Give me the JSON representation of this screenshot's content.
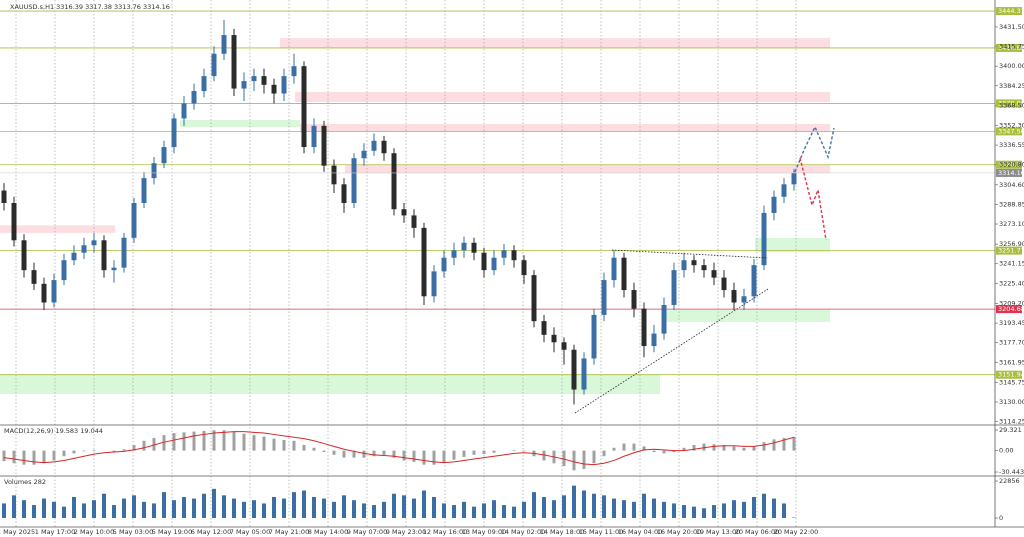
{
  "chart_data": [
    {
      "type": "candlestick",
      "title": "XAUUSD.s,H1  3316.39 3317.38 3313.76 3314.16",
      "ylim": [
        3111.5,
        3453.2
      ],
      "yticks": [
        {
          "value": 3431.5,
          "label": "3431.50"
        },
        3415.75,
        {
          "value": 3400,
          "label": "3400.00"
        },
        3384.25,
        {
          "value": 3368.5,
          "label": "3368.50"
        },
        {
          "value": 3352.3,
          "label": "3352.30"
        },
        3336.55,
        {
          "value": 3320.8,
          "label": "3320.80"
        },
        {
          "value": 3304.6,
          "label": "3304.60"
        },
        3288.85,
        {
          "value": 3273.1,
          "label": "3273.10"
        },
        {
          "value": 3256.9,
          "label": "3256.90"
        },
        3241.15,
        {
          "value": 3225.4,
          "label": "3225.40"
        },
        {
          "value": 3209.2,
          "label": "3209.20"
        },
        3193.45,
        {
          "value": 3177.7,
          "label": "3177.70"
        },
        3161.95,
        3145.75,
        {
          "value": 3130,
          "label": "3130.00"
        },
        3114.25
      ],
      "time_labels": [
        "1 May 2025",
        "1 May 17:00",
        "2 May 10:00",
        "5 May 03:00",
        "5 May 19:00",
        "6 May 12:00",
        "7 May 05:00",
        "7 May 21:00",
        "8 May 14:00",
        "9 May 07:00",
        "9 May 23:00",
        "12 May 16:00",
        "13 May 09:00",
        "14 May 02:00",
        "14 May 18:00",
        "15 May 11:00",
        "16 May 04:00",
        "16 May 20:00",
        "19 May 13:00",
        "20 May 06:00",
        "20 May 22:00"
      ],
      "up_color": "#3b6ea5",
      "down_color": "#2b2b2b",
      "open": [
        3300,
        3290,
        3260,
        3236,
        3225,
        3210,
        3228,
        3244,
        3250,
        3256,
        3260,
        3236,
        3238,
        3262,
        3290,
        3310,
        3322,
        3335,
        3358,
        3370,
        3380,
        3392,
        3410,
        3425,
        3382,
        3388,
        3392,
        3385,
        3378,
        3392,
        3400,
        3335,
        3352,
        3320,
        3305,
        3290,
        3326,
        3332,
        3340,
        3330,
        3285,
        3280,
        3270,
        3215,
        3235,
        3246,
        3252,
        3258,
        3250,
        3236,
        3246,
        3252,
        3244,
        3232,
        3195,
        3184,
        3178,
        3172,
        3140,
        3165,
        3200,
        3228,
        3246,
        3220,
        3205,
        3175,
        3185,
        3208,
        3236,
        3244,
        3240,
        3236,
        3230,
        3220,
        3210,
        3215,
        3240,
        3282,
        3295,
        3305
      ],
      "high": [
        3306,
        3295,
        3265,
        3242,
        3230,
        3233,
        3249,
        3256,
        3262,
        3266,
        3264,
        3244,
        3266,
        3294,
        3315,
        3327,
        3340,
        3362,
        3376,
        3386,
        3398,
        3416,
        3437,
        3430,
        3395,
        3398,
        3398,
        3390,
        3398,
        3410,
        3404,
        3358,
        3356,
        3325,
        3310,
        3330,
        3338,
        3346,
        3344,
        3334,
        3290,
        3285,
        3274,
        3240,
        3252,
        3258,
        3263,
        3262,
        3254,
        3252,
        3257,
        3256,
        3248,
        3236,
        3200,
        3190,
        3182,
        3176,
        3170,
        3205,
        3234,
        3252,
        3250,
        3226,
        3210,
        3192,
        3214,
        3242,
        3250,
        3248,
        3245,
        3242,
        3236,
        3226,
        3221,
        3245,
        3288,
        3300,
        3310,
        3317.38
      ],
      "low": [
        3284,
        3255,
        3230,
        3220,
        3204,
        3206,
        3224,
        3240,
        3245,
        3250,
        3230,
        3226,
        3234,
        3258,
        3286,
        3305,
        3318,
        3330,
        3352,
        3365,
        3375,
        3388,
        3405,
        3376,
        3372,
        3380,
        3378,
        3370,
        3372,
        3386,
        3330,
        3330,
        3315,
        3298,
        3282,
        3286,
        3320,
        3328,
        3324,
        3280,
        3274,
        3262,
        3208,
        3210,
        3230,
        3240,
        3246,
        3244,
        3230,
        3232,
        3240,
        3238,
        3225,
        3190,
        3178,
        3170,
        3160,
        3128,
        3136,
        3160,
        3195,
        3222,
        3214,
        3198,
        3166,
        3170,
        3180,
        3204,
        3230,
        3234,
        3230,
        3224,
        3214,
        3204,
        3204,
        3210,
        3236,
        3276,
        3290,
        3300
      ],
      "close": [
        3290,
        3260,
        3236,
        3225,
        3210,
        3228,
        3244,
        3250,
        3256,
        3260,
        3236,
        3238,
        3262,
        3290,
        3310,
        3322,
        3335,
        3358,
        3370,
        3380,
        3392,
        3410,
        3425,
        3382,
        3388,
        3392,
        3385,
        3378,
        3392,
        3400,
        3335,
        3352,
        3320,
        3305,
        3290,
        3326,
        3332,
        3340,
        3330,
        3285,
        3280,
        3270,
        3215,
        3235,
        3246,
        3252,
        3258,
        3250,
        3236,
        3246,
        3252,
        3244,
        3232,
        3195,
        3184,
        3178,
        3172,
        3140,
        3165,
        3200,
        3228,
        3246,
        3220,
        3205,
        3175,
        3185,
        3208,
        3236,
        3244,
        3240,
        3236,
        3230,
        3220,
        3210,
        3215,
        3240,
        3282,
        3295,
        3305,
        3314.16
      ],
      "levels": [
        {
          "value": 3444.31,
          "color": "#aabd3c"
        },
        {
          "value": 3414.65,
          "color": "#aabd3c"
        },
        {
          "value": 3370.05,
          "color": "#aabd3c"
        },
        {
          "value": 3347.56,
          "color": "#aabd3c"
        },
        {
          "value": 3320.77,
          "color": "#aabd3c"
        },
        {
          "value": 3251.71,
          "color": "#aabd3c"
        },
        {
          "value": 3204.68,
          "color": "#e0334f"
        },
        {
          "value": 3151.94,
          "color": "#aabd3c"
        }
      ],
      "current": {
        "value": 3314.16,
        "color": "#8c8c8c"
      },
      "zones": [
        {
          "low": 3414.4,
          "high": 3422.5,
          "color": "#fbdde2"
        },
        {
          "low": 3371.2,
          "high": 3379.2,
          "color": "#fbdde2"
        },
        {
          "low": 3347,
          "high": 3353.5,
          "color": "#fbdde2"
        },
        {
          "low": 3314,
          "high": 3320.5,
          "color": "#fbdde2"
        },
        {
          "low": 3266,
          "high": 3272,
          "color": "#fbdde2"
        },
        {
          "low": 3351,
          "high": 3356.7,
          "color": "#d9f7d9"
        },
        {
          "low": 3250.6,
          "high": 3261.9,
          "color": "#d9f7d9"
        },
        {
          "low": 3194.3,
          "high": 3204,
          "color": "#d9f7d9"
        },
        {
          "low": 3136.4,
          "high": 3151.7,
          "color": "#d9f7d9"
        }
      ]
    },
    {
      "type": "macd",
      "title": "MACD(12,26,9) 19.583 19.044",
      "ylim": [
        -36.1,
        35.0
      ],
      "yticks": [
        29.321,
        {
          "value": 0,
          "label": "0.00"
        },
        -30.443
      ],
      "color": "#a0a0a0",
      "signal_color": "#d62728",
      "values": [
        -15,
        -18,
        -20,
        -20,
        -18,
        -14,
        -8,
        -4,
        -1,
        1,
        0,
        -2,
        2,
        8,
        14,
        18,
        22,
        25,
        26,
        27,
        28,
        29,
        29,
        27,
        24,
        22,
        20,
        17,
        15,
        14,
        8,
        4,
        -2,
        -6,
        -10,
        -10,
        -10,
        -8,
        -6,
        -10,
        -14,
        -16,
        -20,
        -20,
        -17,
        -13,
        -9,
        -6,
        -5,
        -3,
        0,
        1,
        -1,
        -8,
        -14,
        -18,
        -22,
        -28,
        -26,
        -18,
        -8,
        4,
        10,
        10,
        6,
        -2,
        -4,
        -2,
        4,
        8,
        10,
        9,
        8,
        6,
        4,
        6,
        12,
        16,
        18,
        19.583
      ],
      "signal": [
        -10,
        -12,
        -14,
        -16,
        -17,
        -16,
        -14,
        -11,
        -8,
        -5,
        -3,
        -2,
        -1,
        1,
        4,
        8,
        12,
        15,
        18,
        21,
        23,
        25,
        26,
        27,
        27,
        26,
        25,
        23,
        21,
        19,
        17,
        14,
        10,
        6,
        2,
        -1,
        -4,
        -6,
        -7,
        -8,
        -10,
        -12,
        -14,
        -16,
        -17,
        -16,
        -14,
        -12,
        -10,
        -8,
        -6,
        -4,
        -3,
        -4,
        -6,
        -9,
        -12,
        -16,
        -19,
        -20,
        -18,
        -14,
        -8,
        -3,
        1,
        2,
        1,
        0,
        0,
        2,
        4,
        6,
        7,
        7,
        6,
        6,
        8,
        11,
        15,
        19.044
      ]
    },
    {
      "type": "volume",
      "title": "Volumes 282",
      "ylim": [
        -5559,
        25327
      ],
      "yticks": [
        22856,
        0
      ],
      "color": "#3b6ea5",
      "values": [
        9000,
        14000,
        11000,
        8000,
        12000,
        10000,
        7000,
        13000,
        9000,
        11000,
        15000,
        8000,
        12000,
        14000,
        10000,
        9000,
        16000,
        11000,
        13000,
        12000,
        15000,
        18000,
        14000,
        12000,
        10000,
        11000,
        9000,
        13000,
        12000,
        16000,
        17000,
        13000,
        12000,
        10000,
        14000,
        11000,
        9000,
        8000,
        10000,
        15000,
        14000,
        12000,
        17000,
        13000,
        9000,
        8000,
        10000,
        7000,
        9000,
        11000,
        8000,
        7000,
        10000,
        16000,
        13000,
        11000,
        14000,
        20000,
        17000,
        15000,
        14000,
        12000,
        11000,
        10000,
        15000,
        12000,
        10000,
        9000,
        8000,
        7000,
        6000,
        8000,
        9000,
        11000,
        10000,
        13000,
        15000,
        12000,
        9000,
        282
      ]
    }
  ]
}
